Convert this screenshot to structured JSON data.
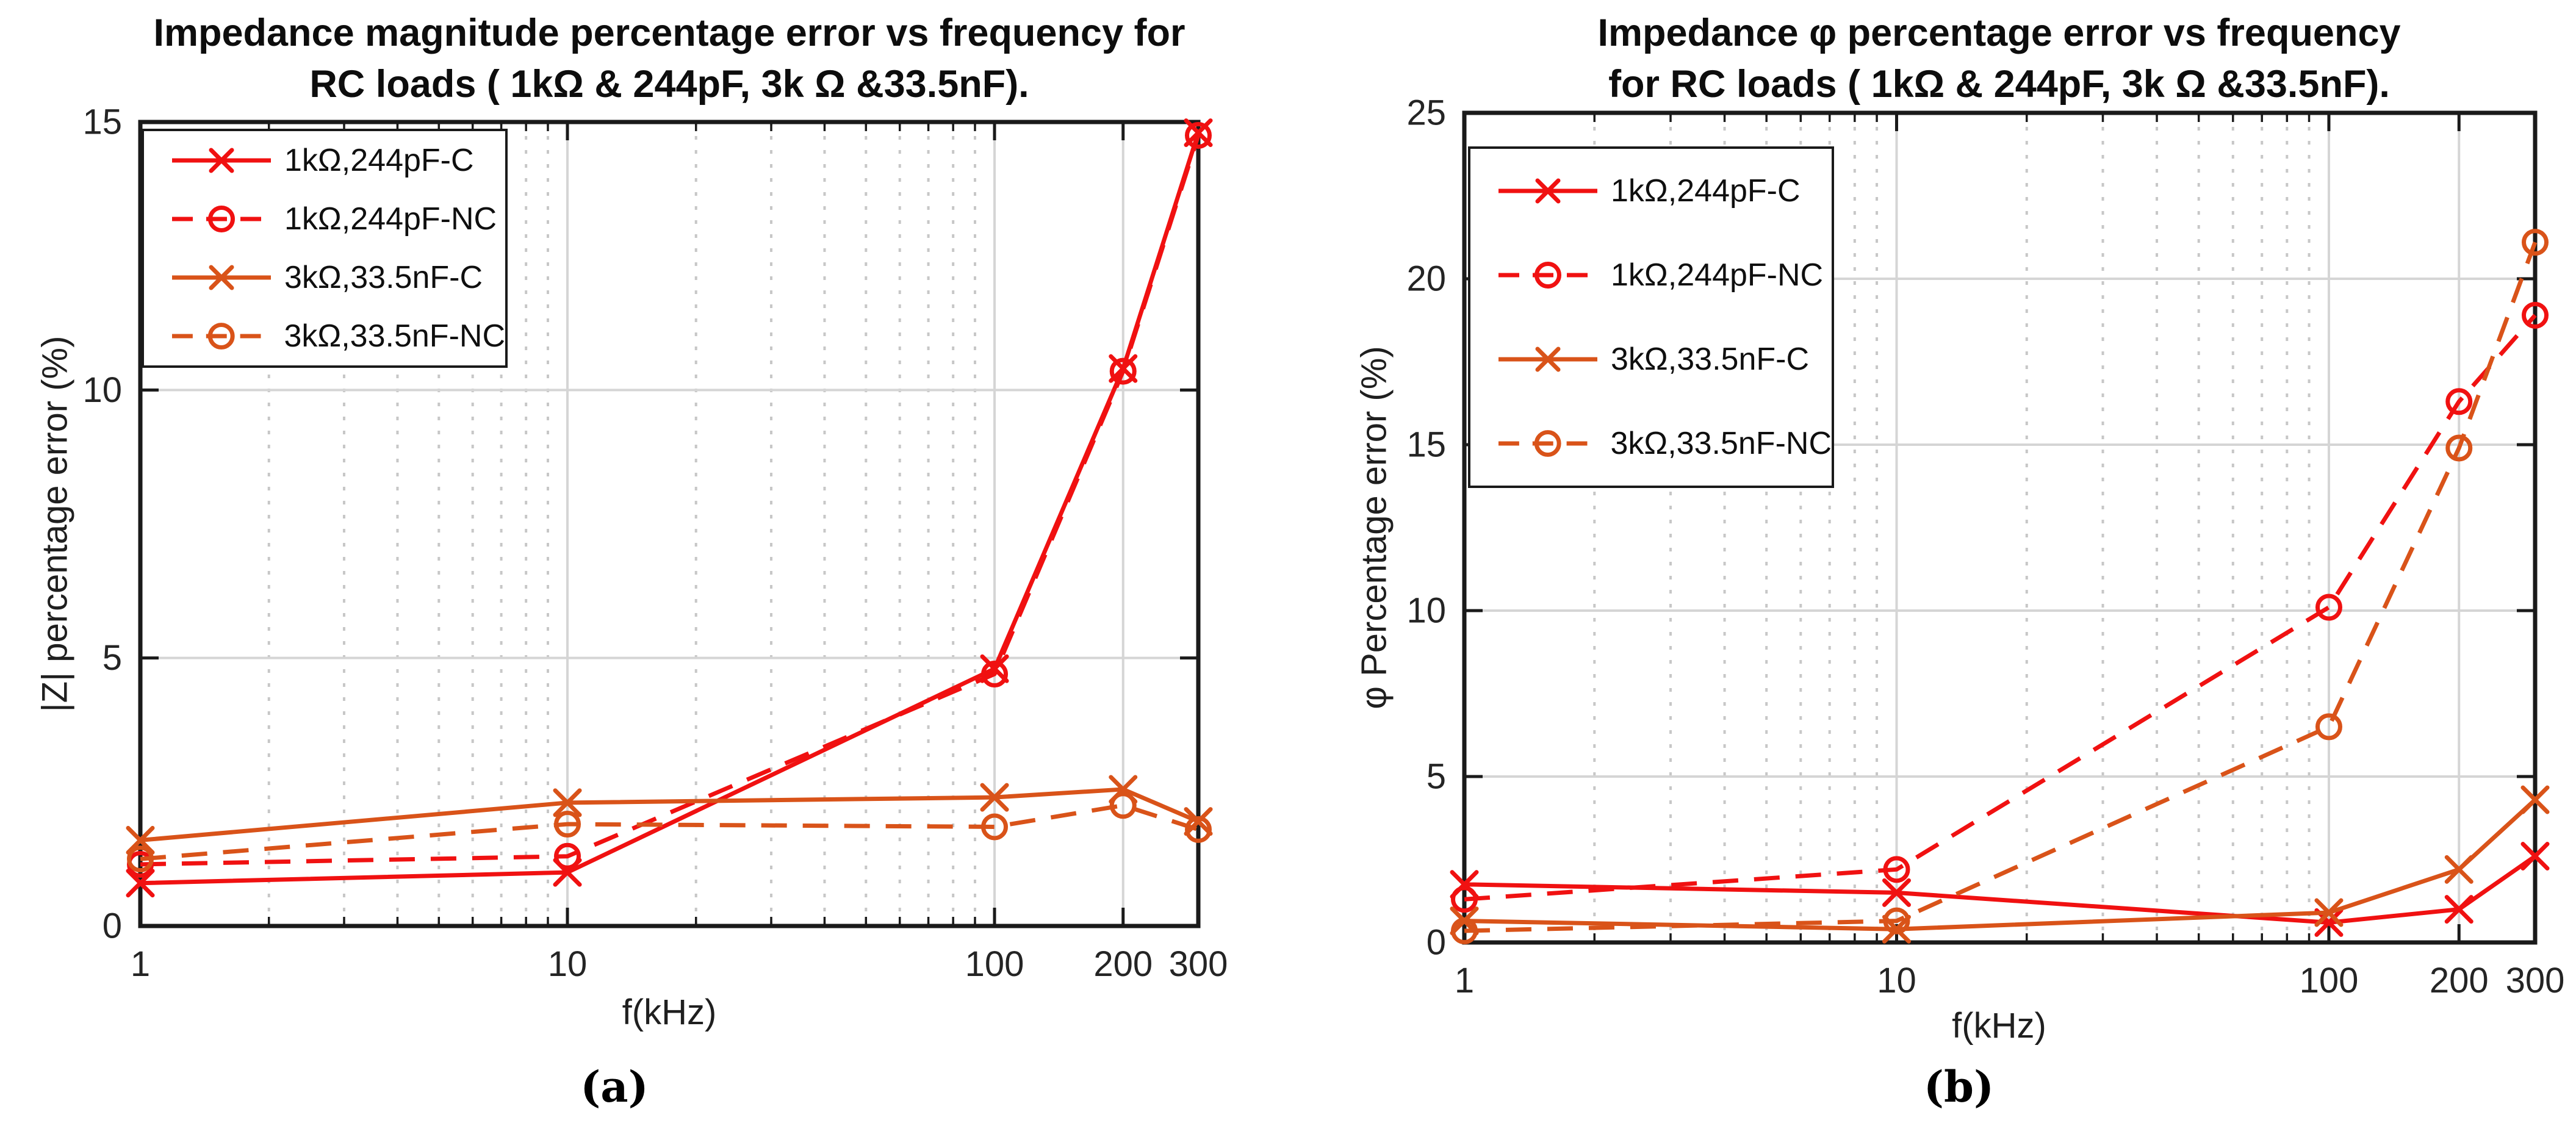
{
  "page_title": "Impedance percentage error vs frequency figures for RC loads",
  "chart_data": [
    {
      "id": "a",
      "type": "line",
      "title": "Impedance magnitude percentage error vs frequency for RC loads ( 1kΩ & 244pF, 3k Ω &33.5nF).",
      "title_lines": [
        "Impedance magnitude percentage error vs frequency for",
        "RC loads ( 1kΩ & 244pF, 3k Ω &33.5nF)."
      ],
      "xlabel": "f(kHz)",
      "ylabel": "|Z| percentage error (%)",
      "caption": "(a)",
      "xscale": "log",
      "grid": true,
      "legend_position": "top-left",
      "x": [
        1,
        10,
        100,
        200,
        300
      ],
      "x_tick_labels": [
        "1",
        "10",
        "100",
        "200",
        "300"
      ],
      "xlim": [
        1,
        300
      ],
      "ylim": [
        0,
        15
      ],
      "y_ticks": [
        0,
        5,
        10,
        15
      ],
      "y_tick_labels": [
        "0",
        "5",
        "10",
        "15"
      ],
      "series": [
        {
          "name": "1kΩ,244pF-C",
          "color": "#f01111",
          "line_style": "solid",
          "marker": "x",
          "values": [
            0.8,
            1.0,
            4.8,
            10.4,
            14.8
          ]
        },
        {
          "name": "1kΩ,244pF-NC",
          "color": "#f01111",
          "line_style": "dashed",
          "marker": "o",
          "values": [
            1.15,
            1.3,
            4.7,
            10.35,
            14.75
          ]
        },
        {
          "name": "3kΩ,33.5nF-C",
          "color": "#d95319",
          "line_style": "solid",
          "marker": "x",
          "values": [
            1.6,
            2.3,
            2.4,
            2.55,
            1.95
          ]
        },
        {
          "name": "3kΩ,33.5nF-NC",
          "color": "#d95319",
          "line_style": "dashed",
          "marker": "o",
          "values": [
            1.25,
            1.9,
            1.85,
            2.25,
            1.8
          ]
        }
      ]
    },
    {
      "id": "b",
      "type": "line",
      "title": "Impedance φ percentage error vs frequency for RC loads ( 1kΩ & 244pF, 3k Ω &33.5nF).",
      "title_lines": [
        "Impedance φ percentage error vs frequency",
        "for RC loads ( 1kΩ & 244pF, 3k Ω &33.5nF)."
      ],
      "xlabel": "f(kHz)",
      "ylabel": "φ Percentage error (%)",
      "caption": "(b)",
      "xscale": "log",
      "grid": true,
      "legend_position": "top-left",
      "x": [
        1,
        10,
        100,
        200,
        300
      ],
      "x_tick_labels": [
        "1",
        "10",
        "100",
        "200",
        "300"
      ],
      "xlim": [
        1,
        300
      ],
      "ylim": [
        0,
        25
      ],
      "y_ticks": [
        0,
        5,
        10,
        15,
        20,
        25
      ],
      "y_tick_labels": [
        "0",
        "5",
        "10",
        "15",
        "20",
        "25"
      ],
      "series": [
        {
          "name": "1kΩ,244pF-C",
          "color": "#f01111",
          "line_style": "solid",
          "marker": "x",
          "values": [
            1.75,
            1.5,
            0.6,
            1.0,
            2.6
          ]
        },
        {
          "name": "1kΩ,244pF-NC",
          "color": "#f01111",
          "line_style": "dashed",
          "marker": "o",
          "values": [
            1.3,
            2.2,
            10.1,
            16.3,
            18.9
          ]
        },
        {
          "name": "3kΩ,33.5nF-C",
          "color": "#d95319",
          "line_style": "solid",
          "marker": "x",
          "values": [
            0.65,
            0.4,
            0.9,
            2.2,
            4.3
          ]
        },
        {
          "name": "3kΩ,33.5nF-NC",
          "color": "#d95319",
          "line_style": "dashed",
          "marker": "o",
          "values": [
            0.35,
            0.65,
            6.5,
            14.9,
            21.1
          ]
        }
      ]
    }
  ]
}
